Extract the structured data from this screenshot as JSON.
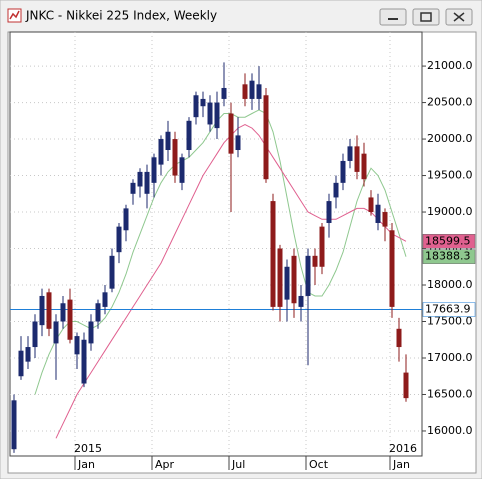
{
  "chart_data": {
    "type": "candlestick",
    "title": "JNKC - Nikkei 225 Index, Weekly",
    "categories": [
      null,
      null,
      null,
      null,
      null,
      null,
      null,
      null,
      null,
      null,
      "Jan",
      null,
      null,
      null,
      null,
      null,
      null,
      null,
      null,
      null,
      null,
      "Apr",
      null,
      null,
      null,
      null,
      null,
      null,
      null,
      null,
      null,
      null,
      "Jul",
      null,
      null,
      null,
      null,
      null,
      null,
      null,
      null,
      null,
      null,
      "Oct",
      null,
      null,
      null,
      null,
      null,
      null,
      null,
      null,
      null,
      null,
      null,
      "Jan",
      null
    ],
    "years": [
      null,
      null,
      null,
      null,
      null,
      null,
      null,
      null,
      null,
      null,
      "2015",
      null,
      null,
      null,
      null,
      null,
      null,
      null,
      null,
      null,
      null,
      null,
      null,
      null,
      null,
      null,
      null,
      null,
      null,
      null,
      null,
      null,
      null,
      null,
      null,
      null,
      null,
      null,
      null,
      null,
      null,
      null,
      null,
      null,
      null,
      null,
      null,
      null,
      null,
      null,
      null,
      null,
      null,
      null,
      null,
      "2016",
      null
    ],
    "open": [
      15750,
      16750,
      16950,
      17150,
      17450,
      17900,
      17200,
      17500,
      17800,
      17050,
      16650,
      17200,
      17500,
      17700,
      17950,
      18450,
      18750,
      19250,
      19350,
      19250,
      19400,
      19650,
      19850,
      20000,
      19400,
      19850,
      20300,
      20450,
      20200,
      20150,
      20550,
      20350,
      19850,
      20750,
      20550,
      20550,
      20600,
      19150,
      18500,
      17800,
      18400,
      17700,
      17850,
      18400,
      18800,
      18850,
      19200,
      19400,
      19700,
      19900,
      19800,
      19200,
      18850,
      19000,
      18750,
      17400,
      16800
    ],
    "high": [
      16500,
      17300,
      17300,
      17600,
      17950,
      17950,
      17600,
      17850,
      17950,
      17350,
      17350,
      17600,
      17800,
      18000,
      18500,
      18850,
      19100,
      19450,
      19600,
      19650,
      19800,
      20050,
      20250,
      20100,
      19800,
      20300,
      20650,
      20650,
      20600,
      20650,
      21050,
      20500,
      20300,
      20900,
      20900,
      21000,
      20700,
      19250,
      18550,
      18350,
      18500,
      18000,
      18500,
      18500,
      18850,
      19250,
      19500,
      19800,
      20000,
      20050,
      19950,
      19300,
      19250,
      19050,
      18850,
      17550,
      17050
    ],
    "low": [
      15700,
      16700,
      16850,
      17000,
      17300,
      17300,
      16700,
      17400,
      17200,
      16850,
      16600,
      17100,
      17400,
      17600,
      17900,
      18300,
      18600,
      19100,
      19200,
      19050,
      19200,
      19500,
      19700,
      19400,
      19300,
      19750,
      20200,
      20300,
      20100,
      20000,
      20450,
      19000,
      19750,
      20450,
      20400,
      20400,
      19400,
      17650,
      17500,
      17500,
      17550,
      17500,
      16900,
      18000,
      18150,
      18650,
      19050,
      19300,
      19600,
      19450,
      19350,
      18950,
      18750,
      18600,
      17550,
      16950,
      16400
    ],
    "close": [
      16420,
      17100,
      17150,
      17500,
      17850,
      17400,
      17500,
      17750,
      17250,
      17300,
      17250,
      17500,
      17750,
      17900,
      18400,
      18800,
      19050,
      19400,
      19550,
      19550,
      19750,
      20000,
      20100,
      19500,
      19750,
      20250,
      20600,
      20550,
      20500,
      20500,
      20700,
      19800,
      20050,
      20550,
      20800,
      20750,
      19450,
      17700,
      17700,
      18250,
      17750,
      17850,
      18400,
      18250,
      18250,
      19150,
      19400,
      19700,
      19900,
      19550,
      19450,
      19000,
      19100,
      18800,
      17700,
      17150,
      16450
    ],
    "up_color": "#1c2a6e",
    "down_color": "#8e1b1b",
    "series": [
      {
        "color": "#8fc88f",
        "values": [
          null,
          null,
          null,
          16500,
          16800,
          17050,
          17250,
          17400,
          17500,
          17500,
          17450,
          17400,
          17450,
          17550,
          17700,
          17900,
          18150,
          18450,
          18700,
          18950,
          19200,
          19400,
          19550,
          19650,
          19700,
          19750,
          19850,
          19950,
          20100,
          20250,
          20350,
          20350,
          20300,
          20300,
          20350,
          20400,
          20350,
          20100,
          19700,
          19200,
          18700,
          18250,
          17900,
          17850,
          17850,
          18000,
          18200,
          18450,
          18800,
          19150,
          19400,
          19600,
          19500,
          19300,
          19000,
          18700,
          18388.3
        ]
      },
      {
        "color": "#e0608f",
        "values": [
          null,
          null,
          null,
          null,
          null,
          null,
          15900,
          16100,
          16300,
          16500,
          16650,
          16800,
          16950,
          17100,
          17250,
          17400,
          17550,
          17700,
          17850,
          18000,
          18150,
          18300,
          18500,
          18700,
          18900,
          19100,
          19300,
          19500,
          19650,
          19800,
          19950,
          20050,
          20150,
          20200,
          20150,
          20050,
          19900,
          19750,
          19600,
          19450,
          19300,
          19150,
          19000,
          18950,
          18900,
          18900,
          18900,
          18950,
          19000,
          19050,
          19050,
          19000,
          18900,
          18800,
          18700,
          18650,
          18599.5
        ]
      }
    ],
    "hline": {
      "value": 17663.9,
      "color": "#1e7fd8"
    },
    "ylim": [
      15657,
      21467
    ],
    "yticks": [
      {
        "value": 16000,
        "label": "16000.0"
      },
      {
        "value": 16500,
        "label": "16500.0"
      },
      {
        "value": 17000,
        "label": "17000.0"
      },
      {
        "value": 17500,
        "label": "17500.0"
      },
      {
        "value": 18000,
        "label": "18000.0"
      },
      {
        "value": 18500,
        "label": "18500.0"
      },
      {
        "value": 19000,
        "label": "19000.0"
      },
      {
        "value": 19500,
        "label": "19500.0"
      },
      {
        "value": 20000,
        "label": "20000.0"
      },
      {
        "value": 20500,
        "label": "20500.0"
      },
      {
        "value": 21000,
        "label": "21000.0"
      }
    ],
    "grid": true
  }
}
